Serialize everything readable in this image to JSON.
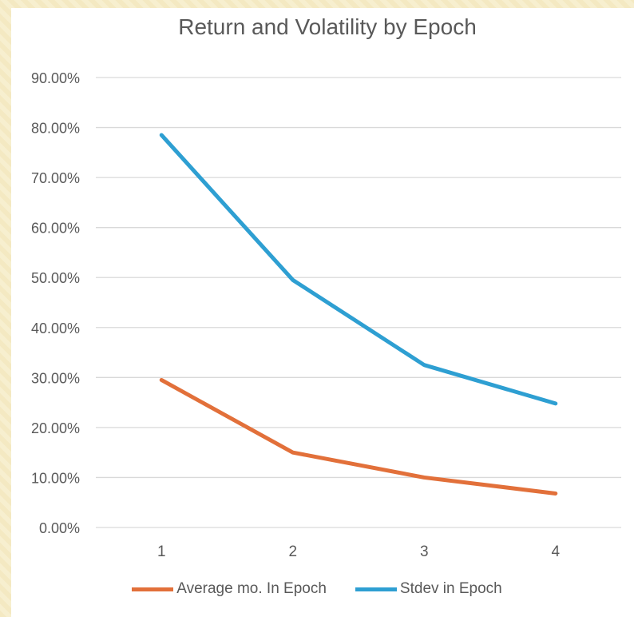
{
  "chart_data": {
    "type": "line",
    "title": "Return and Volatility by Epoch",
    "xlabel": "",
    "ylabel": "",
    "categories": [
      "1",
      "2",
      "3",
      "4"
    ],
    "y_tick_labels": [
      "0.00%",
      "10.00%",
      "20.00%",
      "30.00%",
      "40.00%",
      "50.00%",
      "60.00%",
      "70.00%",
      "80.00%",
      "90.00%"
    ],
    "ylim": [
      0,
      90
    ],
    "grid": true,
    "legend_position": "bottom",
    "series": [
      {
        "name": "Average mo. In Epoch",
        "values": [
          29.5,
          15.0,
          10.0,
          6.8
        ],
        "color": "#e2703a"
      },
      {
        "name": "Stdev in Epoch",
        "values": [
          78.5,
          49.5,
          32.5,
          24.8
        ],
        "color": "#2e9fd2"
      }
    ]
  }
}
